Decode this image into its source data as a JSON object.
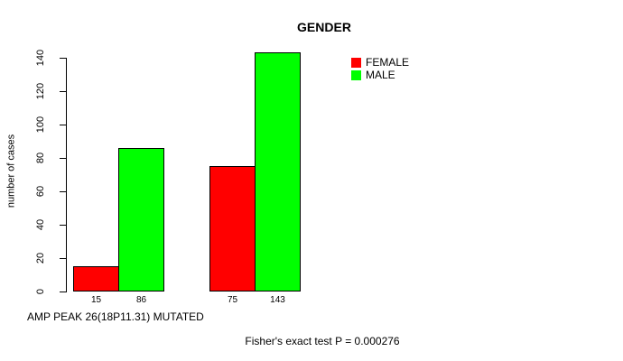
{
  "chart_data": {
    "type": "bar",
    "title": "GENDER",
    "ylabel": "number of cases",
    "xlabel": "AMP PEAK 26(18P11.31) MUTATED",
    "footnote": "Fisher's exact test P = 0.000276",
    "categories": [
      "",
      ""
    ],
    "series": [
      {
        "name": "FEMALE",
        "color": "#ff0000",
        "values": [
          15,
          75
        ]
      },
      {
        "name": "MALE",
        "color": "#00ff00",
        "values": [
          86,
          143
        ]
      }
    ],
    "bar_value_labels": [
      [
        15,
        86
      ],
      [
        75,
        143
      ]
    ],
    "yticks": [
      0,
      20,
      40,
      60,
      80,
      100,
      120,
      140
    ],
    "ylim": [
      0,
      140
    ],
    "grid": false,
    "legend": {
      "position": "top-right",
      "entries": [
        "FEMALE",
        "MALE"
      ]
    },
    "bar_border_color": "#000000",
    "background": "#ffffff"
  }
}
